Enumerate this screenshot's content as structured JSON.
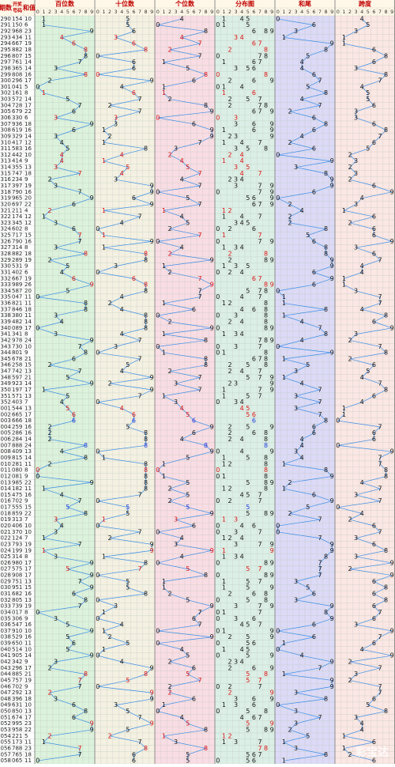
{
  "header": {
    "period": "期数",
    "number": [
      "开奖",
      "号码"
    ],
    "sum": "和值",
    "panels": [
      "百位数",
      "十位数",
      "个位数",
      "分布图",
      "和尾",
      "跨度"
    ],
    "scale": [
      0,
      1,
      2,
      3,
      4,
      5,
      6,
      7,
      8,
      9
    ]
  },
  "table": {
    "rows": [
      [
        "290",
        "154",
        10,
        1,
        5,
        4,
        0,
        4
      ],
      [
        "291",
        "150",
        6,
        1,
        5,
        0,
        6,
        5
      ],
      [
        "292",
        "968",
        23,
        9,
        6,
        8,
        3,
        3
      ],
      [
        "293",
        "434",
        11,
        4,
        3,
        4,
        1,
        1
      ],
      [
        "294",
        "667",
        19,
        6,
        6,
        7,
        9,
        1
      ],
      [
        "295",
        "882",
        18,
        8,
        8,
        2,
        8,
        6
      ],
      [
        "296",
        "807",
        15,
        8,
        0,
        7,
        5,
        8
      ],
      [
        "297",
        "761",
        14,
        7,
        6,
        1,
        4,
        6
      ],
      [
        "298",
        "365",
        14,
        3,
        6,
        5,
        4,
        3
      ],
      [
        "299",
        "808",
        16,
        8,
        0,
        8,
        6,
        8
      ],
      [
        "300",
        "296",
        17,
        2,
        9,
        6,
        7,
        7
      ],
      [
        "301",
        "041",
        5,
        0,
        4,
        1,
        5,
        4
      ],
      [
        "302",
        "161",
        8,
        1,
        6,
        1,
        8,
        5
      ],
      [
        "303",
        "572",
        14,
        5,
        7,
        2,
        4,
        5
      ],
      [
        "304",
        "728",
        17,
        7,
        2,
        8,
        7,
        6
      ],
      [
        "305",
        "679",
        22,
        6,
        7,
        9,
        2,
        3
      ],
      [
        "306",
        "330",
        6,
        3,
        3,
        0,
        6,
        3
      ],
      [
        "307",
        "936",
        18,
        9,
        3,
        6,
        8,
        6
      ],
      [
        "308",
        "619",
        16,
        6,
        1,
        9,
        6,
        8
      ],
      [
        "309",
        "329",
        14,
        3,
        2,
        9,
        4,
        7
      ],
      [
        "310",
        "417",
        12,
        4,
        1,
        7,
        2,
        6
      ],
      [
        "311",
        "583",
        16,
        5,
        8,
        3,
        6,
        5
      ],
      [
        "312",
        "442",
        10,
        4,
        4,
        2,
        0,
        2
      ],
      [
        "313",
        "414",
        9,
        4,
        1,
        4,
        9,
        3
      ],
      [
        "314",
        "355",
        13,
        3,
        5,
        5,
        3,
        2
      ],
      [
        "315",
        "747",
        18,
        7,
        4,
        7,
        8,
        3
      ],
      [
        "316",
        "234",
        9,
        2,
        3,
        4,
        9,
        2
      ],
      [
        "317",
        "397",
        19,
        3,
        9,
        7,
        9,
        6
      ],
      [
        "318",
        "790",
        16,
        7,
        9,
        0,
        6,
        9
      ],
      [
        "319",
        "965",
        20,
        9,
        6,
        5,
        0,
        4
      ],
      [
        "320",
        "697",
        22,
        6,
        9,
        7,
        2,
        3
      ],
      [
        "321",
        "211",
        4,
        2,
        1,
        1,
        4,
        1
      ],
      [
        "322",
        "174",
        12,
        1,
        7,
        4,
        2,
        6
      ],
      [
        "323",
        "345",
        12,
        3,
        4,
        5,
        2,
        2
      ],
      [
        "324",
        "602",
        8,
        6,
        0,
        2,
        8,
        6
      ],
      [
        "325",
        "717",
        15,
        7,
        1,
        7,
        5,
        6
      ],
      [
        "326",
        "790",
        16,
        7,
        9,
        0,
        6,
        9
      ],
      [
        "327",
        "314",
        8,
        3,
        1,
        4,
        8,
        3
      ],
      [
        "328",
        "882",
        18,
        8,
        8,
        2,
        8,
        6
      ],
      [
        "329",
        "289",
        19,
        2,
        8,
        9,
        9,
        7
      ],
      [
        "330",
        "531",
        9,
        5,
        3,
        1,
        9,
        4
      ],
      [
        "331",
        "402",
        6,
        4,
        0,
        2,
        6,
        4
      ],
      [
        "332",
        "667",
        19,
        6,
        6,
        7,
        9,
        1
      ],
      [
        "333",
        "989",
        26,
        9,
        8,
        9,
        6,
        1
      ],
      [
        "334",
        "587",
        20,
        5,
        8,
        7,
        0,
        3
      ],
      [
        "335",
        "047",
        11,
        0,
        4,
        7,
        1,
        7
      ],
      [
        "336",
        "821",
        11,
        8,
        2,
        1,
        1,
        7
      ],
      [
        "337",
        "846",
        18,
        8,
        4,
        6,
        8,
        4
      ],
      [
        "338",
        "380",
        11,
        3,
        8,
        0,
        1,
        8
      ],
      [
        "339",
        "482",
        14,
        4,
        8,
        2,
        4,
        6
      ],
      [
        "340",
        "089",
        17,
        0,
        8,
        9,
        7,
        9
      ],
      [
        "341",
        "341",
        8,
        3,
        4,
        1,
        8,
        3
      ],
      [
        "342",
        "978",
        24,
        9,
        7,
        8,
        4,
        2
      ],
      [
        "343",
        "730",
        10,
        7,
        3,
        0,
        0,
        7
      ],
      [
        "344",
        "801",
        9,
        8,
        0,
        1,
        9,
        8
      ],
      [
        "345",
        "678",
        21,
        6,
        7,
        8,
        1,
        2
      ],
      [
        "346",
        "258",
        15,
        2,
        5,
        8,
        5,
        6
      ],
      [
        "347",
        "742",
        13,
        7,
        4,
        2,
        3,
        5
      ],
      [
        "348",
        "597",
        21,
        5,
        9,
        7,
        1,
        4
      ],
      [
        "349",
        "923",
        14,
        9,
        2,
        3,
        4,
        7
      ],
      [
        "350",
        "197",
        17,
        1,
        9,
        7,
        7,
        8
      ],
      [
        "351",
        "571",
        13,
        5,
        7,
        1,
        3,
        6
      ],
      [
        "352",
        "403",
        7,
        4,
        0,
        3,
        7,
        4
      ],
      [
        "001",
        "544",
        13,
        5,
        4,
        4,
        3,
        1
      ],
      [
        "002",
        "665",
        17,
        6,
        6,
        5,
        7,
        1
      ],
      [
        "003",
        "666",
        18,
        6,
        6,
        6,
        8,
        0
      ],
      [
        "004",
        "259",
        16,
        2,
        5,
        9,
        6,
        7
      ],
      [
        "005",
        "286",
        16,
        2,
        8,
        6,
        6,
        6
      ],
      [
        "006",
        "284",
        14,
        2,
        8,
        4,
        4,
        6
      ],
      [
        "007",
        "888",
        24,
        8,
        8,
        8,
        4,
        0
      ],
      [
        "008",
        "409",
        13,
        4,
        0,
        9,
        3,
        9
      ],
      [
        "009",
        "815",
        14,
        8,
        1,
        5,
        4,
        7
      ],
      [
        "010",
        "281",
        11,
        2,
        8,
        1,
        1,
        7
      ],
      [
        "011",
        "080",
        8,
        0,
        8,
        0,
        8,
        8
      ],
      [
        "012",
        "081",
        9,
        0,
        8,
        1,
        9,
        8
      ],
      [
        "013",
        "985",
        22,
        9,
        8,
        5,
        2,
        4
      ],
      [
        "014",
        "182",
        11,
        1,
        8,
        2,
        1,
        7
      ],
      [
        "015",
        "475",
        16,
        4,
        7,
        5,
        6,
        3
      ],
      [
        "016",
        "702",
        9,
        7,
        0,
        2,
        9,
        7
      ],
      [
        "017",
        "555",
        15,
        5,
        5,
        5,
        5,
        0
      ],
      [
        "018",
        "859",
        22,
        8,
        5,
        9,
        2,
        4
      ],
      [
        "019",
        "313",
        7,
        3,
        1,
        3,
        7,
        2
      ],
      [
        "020",
        "406",
        10,
        4,
        0,
        6,
        0,
        6
      ],
      [
        "021",
        "370",
        10,
        3,
        7,
        0,
        0,
        7
      ],
      [
        "022",
        "124",
        7,
        1,
        2,
        4,
        7,
        3
      ],
      [
        "023",
        "793",
        19,
        7,
        9,
        3,
        9,
        6
      ],
      [
        "024",
        "199",
        19,
        1,
        9,
        9,
        9,
        8
      ],
      [
        "025",
        "314",
        8,
        3,
        1,
        4,
        8,
        3
      ],
      [
        "026",
        "980",
        17,
        9,
        8,
        0,
        7,
        9
      ],
      [
        "027",
        "575",
        17,
        5,
        7,
        5,
        7,
        2
      ],
      [
        "028",
        "908",
        17,
        9,
        0,
        8,
        7,
        9
      ],
      [
        "029",
        "751",
        13,
        7,
        5,
        1,
        3,
        6
      ],
      [
        "030",
        "951",
        15,
        9,
        5,
        1,
        5,
        8
      ],
      [
        "031",
        "682",
        16,
        6,
        8,
        2,
        6,
        6
      ],
      [
        "032",
        "805",
        13,
        8,
        0,
        5,
        3,
        8
      ],
      [
        "033",
        "739",
        19,
        7,
        3,
        9,
        9,
        6
      ],
      [
        "034",
        "017",
        8,
        0,
        1,
        7,
        8,
        7
      ],
      [
        "035",
        "306",
        9,
        3,
        0,
        6,
        9,
        6
      ],
      [
        "036",
        "547",
        16,
        5,
        4,
        7,
        6,
        3
      ],
      [
        "037",
        "910",
        10,
        9,
        1,
        0,
        0,
        9
      ],
      [
        "038",
        "529",
        16,
        5,
        2,
        9,
        6,
        7
      ],
      [
        "039",
        "650",
        11,
        6,
        5,
        0,
        1,
        6
      ],
      [
        "040",
        "514",
        10,
        5,
        1,
        4,
        0,
        4
      ],
      [
        "041",
        "905",
        14,
        9,
        0,
        5,
        4,
        9
      ],
      [
        "042",
        "342",
        9,
        3,
        4,
        2,
        9,
        2
      ],
      [
        "043",
        "296",
        17,
        2,
        9,
        6,
        7,
        7
      ],
      [
        "044",
        "885",
        21,
        8,
        8,
        5,
        1,
        3
      ],
      [
        "045",
        "757",
        19,
        7,
        5,
        7,
        9,
        2
      ],
      [
        "046",
        "702",
        9,
        7,
        0,
        2,
        9,
        7
      ],
      [
        "047",
        "292",
        13,
        2,
        9,
        2,
        3,
        7
      ],
      [
        "048",
        "396",
        18,
        3,
        9,
        6,
        8,
        6
      ],
      [
        "049",
        "631",
        10,
        6,
        3,
        1,
        0,
        5
      ],
      [
        "050",
        "850",
        13,
        8,
        5,
        0,
        3,
        8
      ],
      [
        "051",
        "674",
        17,
        6,
        7,
        4,
        7,
        3
      ],
      [
        "052",
        "995",
        23,
        9,
        9,
        5,
        3,
        4
      ],
      [
        "053",
        "958",
        22,
        9,
        5,
        8,
        2,
        4
      ],
      [
        "054",
        "221",
        5,
        2,
        2,
        1,
        5,
        1
      ],
      [
        "055",
        "173",
        11,
        1,
        7,
        3,
        1,
        6
      ],
      [
        "056",
        "788",
        23,
        7,
        8,
        8,
        3,
        1
      ],
      [
        "057",
        "765",
        18,
        7,
        6,
        5,
        8,
        2
      ],
      [
        "058",
        "065",
        11,
        0,
        6,
        5,
        1,
        6
      ]
    ]
  },
  "watermark": "彩宝达"
}
